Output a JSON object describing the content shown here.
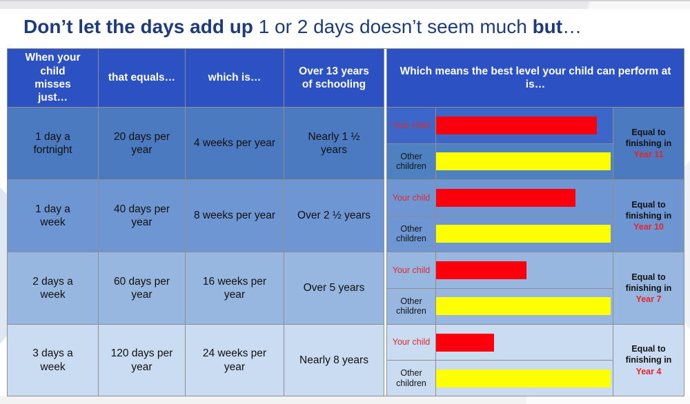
{
  "page": {
    "title_bold": "Don’t let the days add up",
    "title_regular": " 1 or 2 days doesn’t seem much ",
    "title_bold2": "but",
    "title_ellipsis": "…"
  },
  "table": {
    "headers": [
      "When your child misses just…",
      "that equals…",
      "which is…",
      "Over 13 years of schooling",
      "Which means the best level your child can perform at is…"
    ],
    "your_child_label": "Your child",
    "other_children_label": "Other children",
    "rows": [
      {
        "misses": "1 day a fortnight",
        "equals": "20 days per year",
        "which_is": "4 weeks per year",
        "schooling": "Nearly 1 ½ years",
        "equal_prefix": "Equal to finishing in",
        "year": "Year 11",
        "your_child_pct": 91,
        "other_children_pct": 99
      },
      {
        "misses": "1 day a week",
        "equals": "40 days per year",
        "which_is": "8 weeks per year",
        "schooling": "Over 2 ½ years",
        "equal_prefix": "Equal to finishing in",
        "year": "Year 10",
        "your_child_pct": 79,
        "other_children_pct": 99
      },
      {
        "misses": "2 days a week",
        "equals": "60 days per year",
        "which_is": "16 weeks per year",
        "schooling": "Over 5 years",
        "equal_prefix": "Equal to finishing in",
        "year": "Year 7",
        "your_child_pct": 51,
        "other_children_pct": 99
      },
      {
        "misses": "3 days a week",
        "equals": "120 days per year",
        "which_is": "24 weeks per year",
        "schooling": "Nearly 8 years",
        "equal_prefix": "Equal to finishing in",
        "year": "Year 4",
        "your_child_pct": 33,
        "other_children_pct": 99
      }
    ]
  },
  "colors": {
    "title_navy": "#1e3b7c",
    "header_blue": "#2b51c2",
    "row1_blue": "#4b7ac0",
    "row1_your_child_blue": "#3c66c8",
    "row2_blue": "#6d96d3",
    "row3_blue": "#97b6e0",
    "row4_blue": "#cadcf1",
    "bar_red": "#fb000c",
    "bar_yellow": "#ffff03",
    "red_text": "#e02a2e",
    "grid_gray": "#8e8e8e"
  },
  "chart_data": {
    "type": "table",
    "title": "Don’t let the days add up 1 or 2 days doesn’t seem much but…",
    "columns": [
      "When your child misses just…",
      "that equals…",
      "which is…",
      "Over 13 years of schooling",
      "Which means the best level your child can perform at is…"
    ],
    "rows": [
      [
        "1 day a fortnight",
        "20 days per year",
        "4 weeks per year",
        "Nearly 1 ½ years",
        "Equal to finishing in Year 11"
      ],
      [
        "1 day a week",
        "40 days per year",
        "8 weeks per year",
        "Over 2 ½ years",
        "Equal to finishing in Year 10"
      ],
      [
        "2 days a week",
        "60 days per year",
        "16 weeks per year",
        "Over 5 years",
        "Equal to finishing in Year 7"
      ],
      [
        "3 days a week",
        "120 days per year",
        "24 weeks per year",
        "Nearly 8 years",
        "Equal to finishing in Year 4"
      ]
    ],
    "embedded_bars": {
      "type": "bar",
      "orientation": "horizontal",
      "categories": [
        "1 day a fortnight",
        "1 day a week",
        "2 days a week",
        "3 days a week"
      ],
      "series": [
        {
          "name": "Your child",
          "color": "#fb000c",
          "values": [
            91,
            79,
            51,
            33
          ]
        },
        {
          "name": "Other children",
          "color": "#ffff03",
          "values": [
            99,
            99,
            99,
            99
          ]
        }
      ],
      "value_unit": "relative bar length, percent of cell width",
      "xlim": [
        0,
        100
      ]
    }
  }
}
